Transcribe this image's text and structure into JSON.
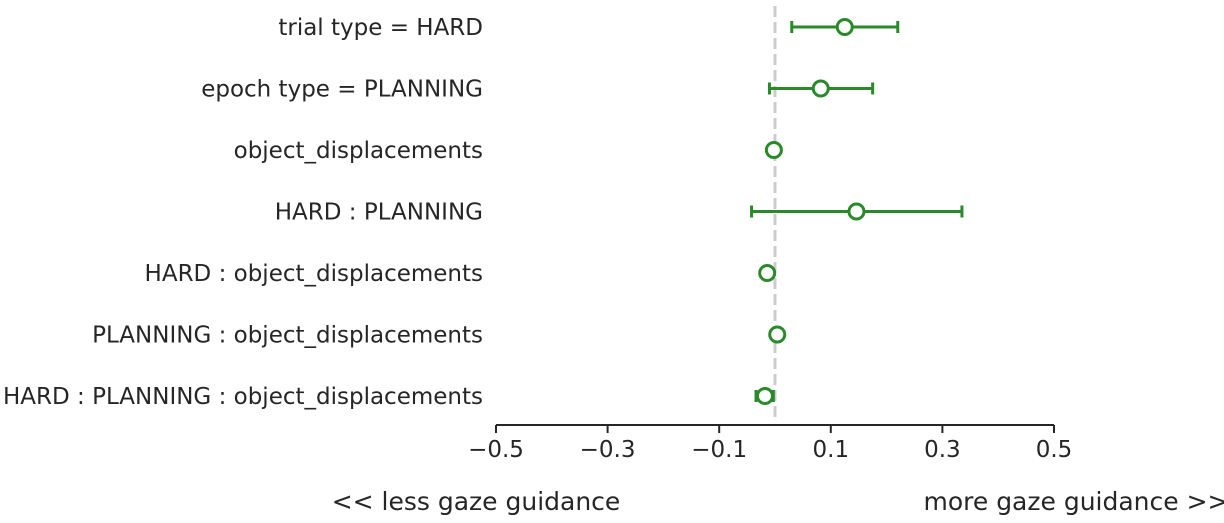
{
  "chart_data": {
    "type": "scatter",
    "subtype": "forest-plot",
    "title": "",
    "xlabel": "",
    "ylabel": "",
    "xlim": [
      -0.5,
      0.5
    ],
    "xticks": [
      -0.5,
      -0.3,
      -0.1,
      0.1,
      0.3,
      0.5
    ],
    "xtick_labels": [
      "−0.5",
      "−0.3",
      "−0.1",
      "0.1",
      "0.3",
      "0.5"
    ],
    "reference_line": {
      "x": 0.0,
      "style": "dashed",
      "color": "#cccccc"
    },
    "marker_color": "#2a8a2a",
    "grid": false,
    "legend": "none",
    "left_annotation": "<< less gaze guidance",
    "right_annotation": "more gaze guidance >>",
    "rows": [
      {
        "label": "trial type = HARD",
        "estimate": 0.125,
        "ci_low": 0.03,
        "ci_high": 0.22
      },
      {
        "label": "epoch type = PLANNING",
        "estimate": 0.082,
        "ci_low": -0.01,
        "ci_high": 0.175
      },
      {
        "label": "object_displacements",
        "estimate": -0.002,
        "ci_low": -0.004,
        "ci_high": 0.001
      },
      {
        "label": "HARD : PLANNING",
        "estimate": 0.146,
        "ci_low": -0.042,
        "ci_high": 0.335
      },
      {
        "label": "HARD : object_displacements",
        "estimate": -0.014,
        "ci_low": -0.016,
        "ci_high": -0.012
      },
      {
        "label": "PLANNING : object_displacements",
        "estimate": 0.004,
        "ci_low": 0.002,
        "ci_high": 0.006
      },
      {
        "label": "HARD : PLANNING : object_displacements",
        "estimate": -0.018,
        "ci_low": -0.034,
        "ci_high": -0.003
      }
    ]
  }
}
